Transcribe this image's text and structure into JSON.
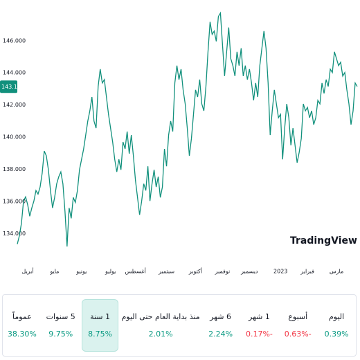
{
  "chart_data": {
    "type": "line",
    "series": [
      {
        "color": "#11907c",
        "values": [
          133.35,
          133.87,
          134.65,
          136.03,
          136.29,
          135.8,
          135.08,
          135.6,
          136.03,
          136.68,
          136.46,
          136.9,
          137.76,
          139.14,
          138.84,
          137.97,
          136.68,
          135.6,
          136.25,
          137.1,
          137.54,
          137.84,
          137.1,
          135.38,
          133.2,
          135.6,
          134.95,
          136.25,
          135.94,
          136.68,
          137.97,
          138.62,
          139.27,
          140.13,
          141.0,
          141.64,
          142.5,
          141.0,
          140.56,
          143.15,
          144.23,
          143.37,
          143.58,
          142.5,
          141.42,
          140.56,
          139.7,
          138.62,
          137.84,
          138.62,
          137.97,
          139.7,
          139.27,
          140.35,
          138.97,
          140.13,
          138.84,
          137.32,
          136.25,
          135.17,
          136.03,
          137.1,
          136.68,
          138.19,
          136.03,
          137.1,
          137.97,
          136.9,
          137.54,
          136.25,
          136.9,
          139.27,
          138.19,
          140.13,
          141.0,
          140.35,
          143.37,
          144.45,
          143.58,
          144.23,
          142.94,
          142.07,
          140.56,
          138.84,
          139.91,
          141.42,
          142.94,
          142.5,
          143.58,
          142.07,
          141.64,
          143.15,
          145.31,
          147.17,
          146.39,
          146.6,
          145.96,
          147.5,
          147.72,
          145.74,
          143.8,
          145.31,
          146.82,
          144.88,
          144.45,
          143.8,
          145.31,
          144.45,
          145.53,
          143.8,
          144.45,
          143.58,
          144.23,
          143.37,
          142.29,
          143.37,
          142.5,
          144.45,
          145.53,
          146.6,
          145.53,
          143.37,
          140.13,
          141.64,
          142.94,
          142.07,
          141.21,
          141.42,
          138.62,
          140.56,
          142.07,
          141.21,
          139.49,
          140.56,
          139.49,
          138.41,
          139.06,
          139.91,
          142.07,
          141.64,
          141.85,
          141.21,
          141.64,
          140.78,
          141.21,
          142.29,
          142.07,
          143.37,
          142.72,
          143.58,
          143.15,
          144.23,
          144.02,
          145.31,
          144.88,
          144.45,
          144.66,
          143.8,
          144.02,
          142.94,
          142.07,
          140.78,
          141.64,
          143.37,
          143.15
        ]
      }
    ],
    "xlim": [
      0,
      164
    ],
    "ylim": [
      132.6,
      148.1
    ],
    "yticks": [
      {
        "value": 134,
        "label": "134.000"
      },
      {
        "value": 136,
        "label": "136.000"
      },
      {
        "value": 138,
        "label": "138.000"
      },
      {
        "value": 140,
        "label": "140.000"
      },
      {
        "value": 142,
        "label": "142.000"
      },
      {
        "value": 144,
        "label": "144.000"
      },
      {
        "value": 146,
        "label": "146.000"
      }
    ],
    "xticks": [
      {
        "value": 5,
        "label": "أبريل"
      },
      {
        "value": 18,
        "label": "مايو"
      },
      {
        "value": 31,
        "label": "يونيو"
      },
      {
        "value": 45,
        "label": "يوليو"
      },
      {
        "value": 57,
        "label": "أغسطس"
      },
      {
        "value": 72,
        "label": "سبتمبر"
      },
      {
        "value": 86,
        "label": "أكتوبر"
      },
      {
        "value": 99,
        "label": "نوفمبر"
      },
      {
        "value": 112,
        "label": "ديسمبر"
      },
      {
        "value": 127,
        "label": "2023"
      },
      {
        "value": 140,
        "label": "فبراير"
      },
      {
        "value": 154,
        "label": "مارس"
      }
    ],
    "last_price": {
      "value": 143.137,
      "label": "143.137"
    },
    "logo": "TradingView"
  },
  "tabs": [
    {
      "label": "اليوم",
      "change": "0.39%",
      "direction": "up"
    },
    {
      "label": "أسبوع",
      "change": "-0.63%",
      "direction": "down"
    },
    {
      "label": "1 شهر",
      "change": "-0.17%",
      "direction": "down"
    },
    {
      "label": "6 شهر",
      "change": "2.24%",
      "direction": "up"
    },
    {
      "label": "منذ بداية العام حتى اليوم",
      "change": "2.01%",
      "direction": "up"
    },
    {
      "label": "1 سنة",
      "change": "8.75%",
      "direction": "up",
      "selected": true
    },
    {
      "label": "5 سنوات",
      "change": "9.75%",
      "direction": "up"
    },
    {
      "label": "عموماً",
      "change": "38.30%",
      "direction": "up"
    }
  ]
}
